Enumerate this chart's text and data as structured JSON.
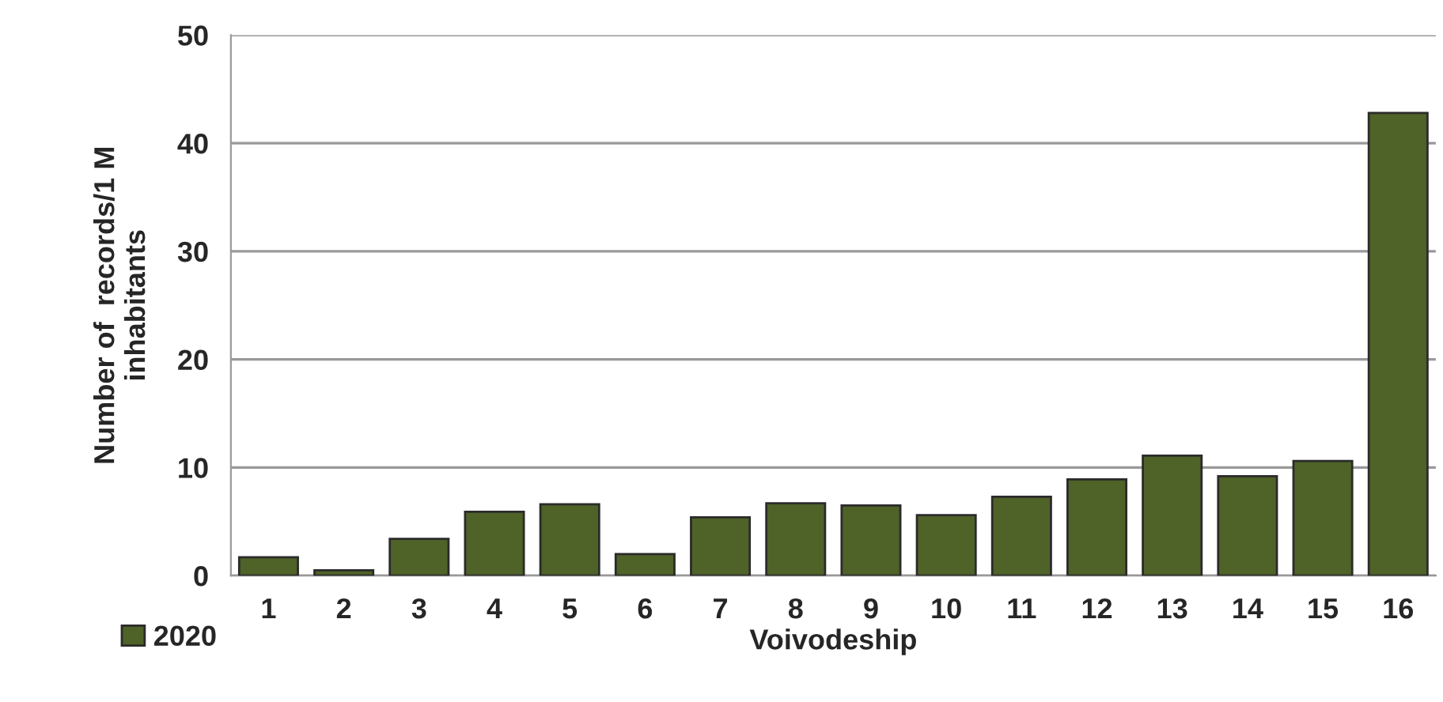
{
  "chart_data": {
    "type": "bar",
    "xlabel": "Voivodeship",
    "ylabel": "Number of  records/1 M\ninhabitants",
    "categories": [
      "1",
      "2",
      "3",
      "4",
      "5",
      "6",
      "7",
      "8",
      "9",
      "10",
      "11",
      "12",
      "13",
      "14",
      "15",
      "16"
    ],
    "series": [
      {
        "name": "2020",
        "color": "#4f6228",
        "values": [
          1.7,
          0.5,
          3.4,
          5.9,
          6.6,
          2.0,
          5.4,
          6.7,
          6.5,
          5.6,
          7.3,
          8.9,
          11.1,
          9.2,
          10.6,
          42.8
        ]
      }
    ],
    "ylim": [
      0,
      50
    ],
    "yticks": [
      0,
      10,
      20,
      30,
      40,
      50
    ],
    "grid": "y",
    "legend": "bottom left"
  }
}
